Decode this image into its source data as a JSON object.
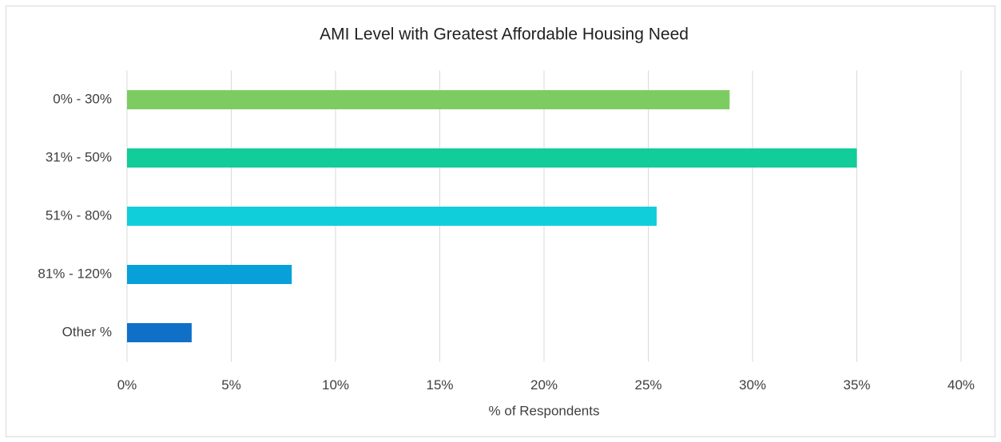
{
  "chart_data": {
    "type": "barh",
    "title": "AMI Level with Greatest Affordable Housing Need",
    "categories": [
      "0% - 30%",
      "31% - 50%",
      "51% - 80%",
      "81% - 120%",
      "Other %"
    ],
    "values": [
      28.9,
      35,
      25.4,
      7.9,
      3.1
    ],
    "colors": [
      "#7dcc62",
      "#12cc9a",
      "#10cfdb",
      "#07a0d9",
      "#1070c8"
    ],
    "x_label": "% of Respondents",
    "xlim": [
      0,
      40
    ],
    "xticks": [
      {
        "value": 0,
        "label": "0%"
      },
      {
        "value": 5,
        "label": "5%"
      },
      {
        "value": 10,
        "label": "10%"
      },
      {
        "value": 15,
        "label": "15%"
      },
      {
        "value": 20,
        "label": "20%"
      },
      {
        "value": 25,
        "label": "25%"
      },
      {
        "value": 30,
        "label": "30%"
      },
      {
        "value": 35,
        "label": "35%"
      },
      {
        "value": 40,
        "label": "40%"
      }
    ],
    "grid": true
  }
}
